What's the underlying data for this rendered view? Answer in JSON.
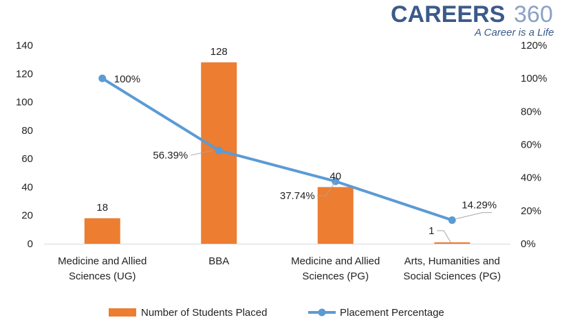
{
  "brand": {
    "name": "CAREERS",
    "number": "360",
    "tagline": "A Career is a Life"
  },
  "chart_data": {
    "type": "bar",
    "categories": [
      [
        "Medicine and Allied",
        "Sciences (UG)"
      ],
      [
        "BBA"
      ],
      [
        "Medicine and Allied",
        "Sciences (PG)"
      ],
      [
        "Arts, Humanities and",
        "Social Sciences (PG)"
      ]
    ],
    "series": [
      {
        "name": "Number of Students Placed",
        "type": "bar",
        "axis": "left",
        "color": "#ed7d31",
        "values": [
          18,
          128,
          40,
          1
        ],
        "labels": [
          "18",
          "128",
          "40",
          "1"
        ]
      },
      {
        "name": "Placement Percentage",
        "type": "line",
        "axis": "right",
        "color": "#5b9bd5",
        "values": [
          100,
          56.39,
          37.74,
          14.29
        ],
        "labels": [
          "100%",
          "56.39%",
          "37.74%",
          "14.29%"
        ]
      }
    ],
    "y_left": {
      "min": 0,
      "max": 140,
      "step": 20,
      "ticks": [
        "0",
        "20",
        "40",
        "60",
        "80",
        "100",
        "120",
        "140"
      ]
    },
    "y_right": {
      "min": 0,
      "max": 120,
      "step": 20,
      "ticks": [
        "0%",
        "20%",
        "40%",
        "60%",
        "80%",
        "100%",
        "120%"
      ]
    },
    "legend_position": "bottom",
    "grid": false
  }
}
